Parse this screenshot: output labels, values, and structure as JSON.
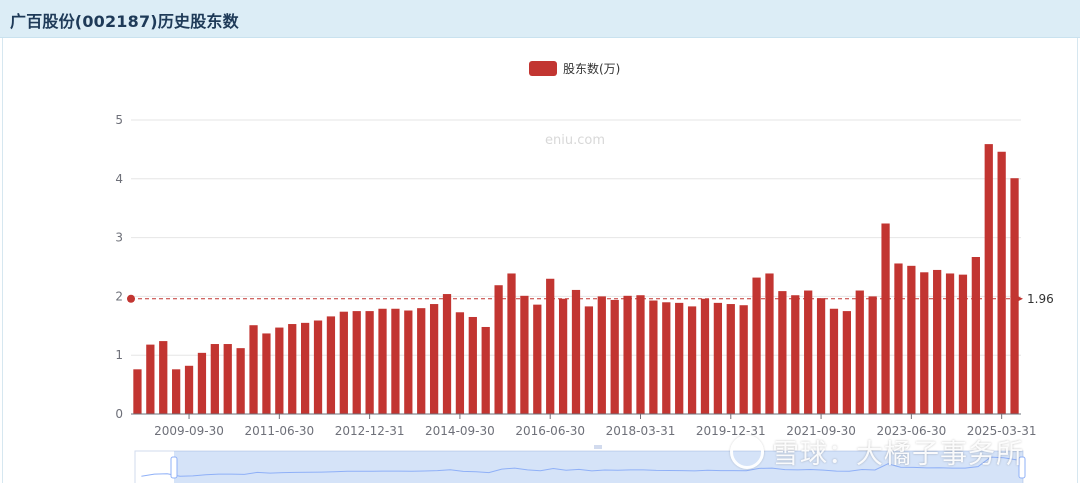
{
  "header": {
    "title": "广百股份(002187)历史股东数"
  },
  "watermark": {
    "center": "eniu.com",
    "corner": "雪球：大橘子事务所"
  },
  "chart_data": {
    "type": "bar",
    "series": [
      {
        "name": "股东数(万)",
        "color": "#c23531",
        "values": [
          0.76,
          1.18,
          1.24,
          0.76,
          0.82,
          1.04,
          1.19,
          1.19,
          1.12,
          1.51,
          1.37,
          1.47,
          1.53,
          1.55,
          1.59,
          1.66,
          1.74,
          1.75,
          1.75,
          1.79,
          1.79,
          1.76,
          1.8,
          1.87,
          2.04,
          1.73,
          1.65,
          1.48,
          2.19,
          2.39,
          2.01,
          1.86,
          2.3,
          1.96,
          2.11,
          1.83,
          2.0,
          1.94,
          2.01,
          2.02,
          1.93,
          1.9,
          1.89,
          1.83,
          1.96,
          1.89,
          1.87,
          1.85,
          2.32,
          2.39,
          2.09,
          2.02,
          2.1,
          1.97,
          1.79,
          1.75,
          2.1,
          2.0,
          3.24,
          2.56,
          2.52,
          2.41,
          2.45,
          2.39,
          2.37,
          2.67,
          4.59,
          4.46,
          4.01
        ]
      }
    ],
    "x_tick_labels": [
      "2009-09-30",
      "2011-06-30",
      "2012-12-31",
      "2014-09-30",
      "2016-06-30",
      "2018-03-31",
      "2019-12-31",
      "2021-09-30",
      "2023-06-30",
      "2025-03-31"
    ],
    "x_tick_indices": [
      4,
      11,
      18,
      25,
      32,
      39,
      46,
      53,
      60,
      67
    ],
    "y_ticks": [
      "0",
      "1",
      "2",
      "3",
      "4",
      "5"
    ],
    "ylim": [
      0,
      5
    ],
    "average": {
      "value": 1.96,
      "label": "1.96",
      "color": "#c23531"
    },
    "legend": "top-center",
    "grid": "horizontal"
  }
}
